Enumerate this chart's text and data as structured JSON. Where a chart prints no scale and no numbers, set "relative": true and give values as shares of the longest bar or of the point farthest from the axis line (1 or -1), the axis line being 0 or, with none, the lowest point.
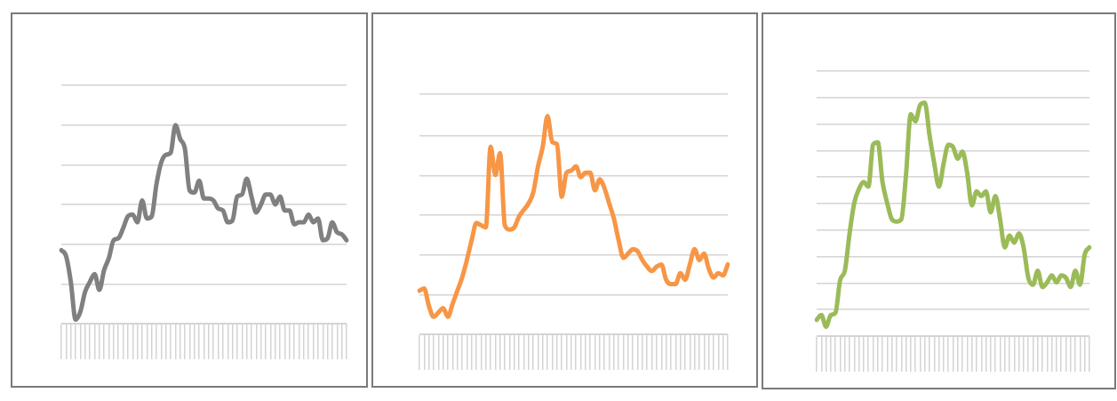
{
  "chart_data": [
    {
      "type": "line",
      "relative": true,
      "grid": "y",
      "legend": false,
      "categories": [
        null,
        null,
        null,
        null,
        null,
        null,
        null,
        null,
        null,
        null,
        null,
        null,
        null,
        null,
        null,
        null,
        null,
        null,
        null,
        null,
        null,
        null,
        null,
        null,
        null,
        null,
        null,
        null,
        null,
        null,
        null,
        null,
        null,
        null,
        null,
        null,
        null,
        null,
        null,
        null,
        null,
        null,
        null,
        null,
        null,
        null,
        null,
        null,
        null,
        null,
        null,
        null,
        null,
        null,
        null,
        null,
        null,
        null,
        null,
        null,
        null
      ],
      "series": [
        {
          "color": "#808080",
          "values": [
            0.37,
            0.34,
            0.21,
            0.02,
            0.06,
            0.16,
            0.21,
            0.25,
            0.17,
            0.27,
            0.33,
            0.42,
            0.43,
            0.48,
            0.54,
            0.55,
            0.51,
            0.62,
            0.53,
            0.54,
            0.7,
            0.81,
            0.85,
            0.86,
            1.0,
            0.93,
            0.88,
            0.67,
            0.66,
            0.72,
            0.63,
            0.63,
            0.62,
            0.58,
            0.57,
            0.51,
            0.52,
            0.64,
            0.65,
            0.73,
            0.64,
            0.56,
            0.6,
            0.65,
            0.65,
            0.6,
            0.64,
            0.57,
            0.57,
            0.5,
            0.51,
            0.51,
            0.55,
            0.51,
            0.53,
            0.42,
            0.43,
            0.51,
            0.46,
            0.45,
            0.42
          ]
        }
      ]
    },
    {
      "type": "line",
      "relative": true,
      "grid": "y",
      "legend": false,
      "categories": [
        null,
        null,
        null,
        null,
        null,
        null,
        null,
        null,
        null,
        null,
        null,
        null,
        null,
        null,
        null,
        null,
        null,
        null,
        null,
        null,
        null,
        null,
        null,
        null,
        null,
        null,
        null,
        null,
        null,
        null,
        null,
        null,
        null,
        null,
        null,
        null,
        null,
        null,
        null,
        null,
        null,
        null,
        null,
        null,
        null,
        null,
        null,
        null,
        null,
        null,
        null,
        null,
        null,
        null,
        null,
        null,
        null,
        null,
        null,
        null,
        null,
        null,
        null,
        null,
        null,
        null
      ],
      "series": [
        {
          "color": "#f79646",
          "values": [
            0.2,
            0.21,
            0.13,
            0.08,
            0.1,
            0.12,
            0.08,
            0.14,
            0.2,
            0.26,
            0.34,
            0.43,
            0.51,
            0.5,
            0.49,
            0.86,
            0.73,
            0.83,
            0.5,
            0.48,
            0.49,
            0.54,
            0.57,
            0.6,
            0.65,
            0.77,
            0.86,
            1.0,
            0.88,
            0.87,
            0.63,
            0.74,
            0.75,
            0.77,
            0.72,
            0.74,
            0.74,
            0.66,
            0.71,
            0.67,
            0.6,
            0.53,
            0.43,
            0.35,
            0.37,
            0.39,
            0.38,
            0.34,
            0.31,
            0.29,
            0.31,
            0.32,
            0.25,
            0.23,
            0.23,
            0.28,
            0.25,
            0.32,
            0.39,
            0.34,
            0.37,
            0.3,
            0.26,
            0.28,
            0.27,
            0.32
          ]
        }
      ]
    },
    {
      "type": "line",
      "relative": true,
      "grid": "y",
      "legend": false,
      "categories": [
        null,
        null,
        null,
        null,
        null,
        null,
        null,
        null,
        null,
        null,
        null,
        null,
        null,
        null,
        null,
        null,
        null,
        null,
        null,
        null,
        null,
        null,
        null,
        null,
        null,
        null,
        null,
        null,
        null,
        null,
        null,
        null,
        null,
        null,
        null,
        null,
        null,
        null,
        null,
        null,
        null,
        null,
        null,
        null,
        null,
        null,
        null,
        null,
        null,
        null,
        null,
        null,
        null,
        null,
        null,
        null,
        null,
        null,
        null
      ],
      "series": [
        {
          "color": "#9bbb59",
          "values": [
            0.07,
            0.09,
            0.04,
            0.09,
            0.1,
            0.24,
            0.28,
            0.44,
            0.57,
            0.63,
            0.66,
            0.64,
            0.82,
            0.83,
            0.66,
            0.57,
            0.5,
            0.49,
            0.5,
            0.69,
            0.95,
            0.92,
            0.99,
            1.0,
            0.86,
            0.74,
            0.64,
            0.74,
            0.82,
            0.81,
            0.76,
            0.79,
            0.7,
            0.56,
            0.62,
            0.6,
            0.62,
            0.53,
            0.6,
            0.5,
            0.38,
            0.43,
            0.4,
            0.44,
            0.38,
            0.25,
            0.22,
            0.28,
            0.21,
            0.23,
            0.26,
            0.23,
            0.26,
            0.25,
            0.21,
            0.28,
            0.22,
            0.35,
            0.38
          ]
        }
      ]
    }
  ]
}
